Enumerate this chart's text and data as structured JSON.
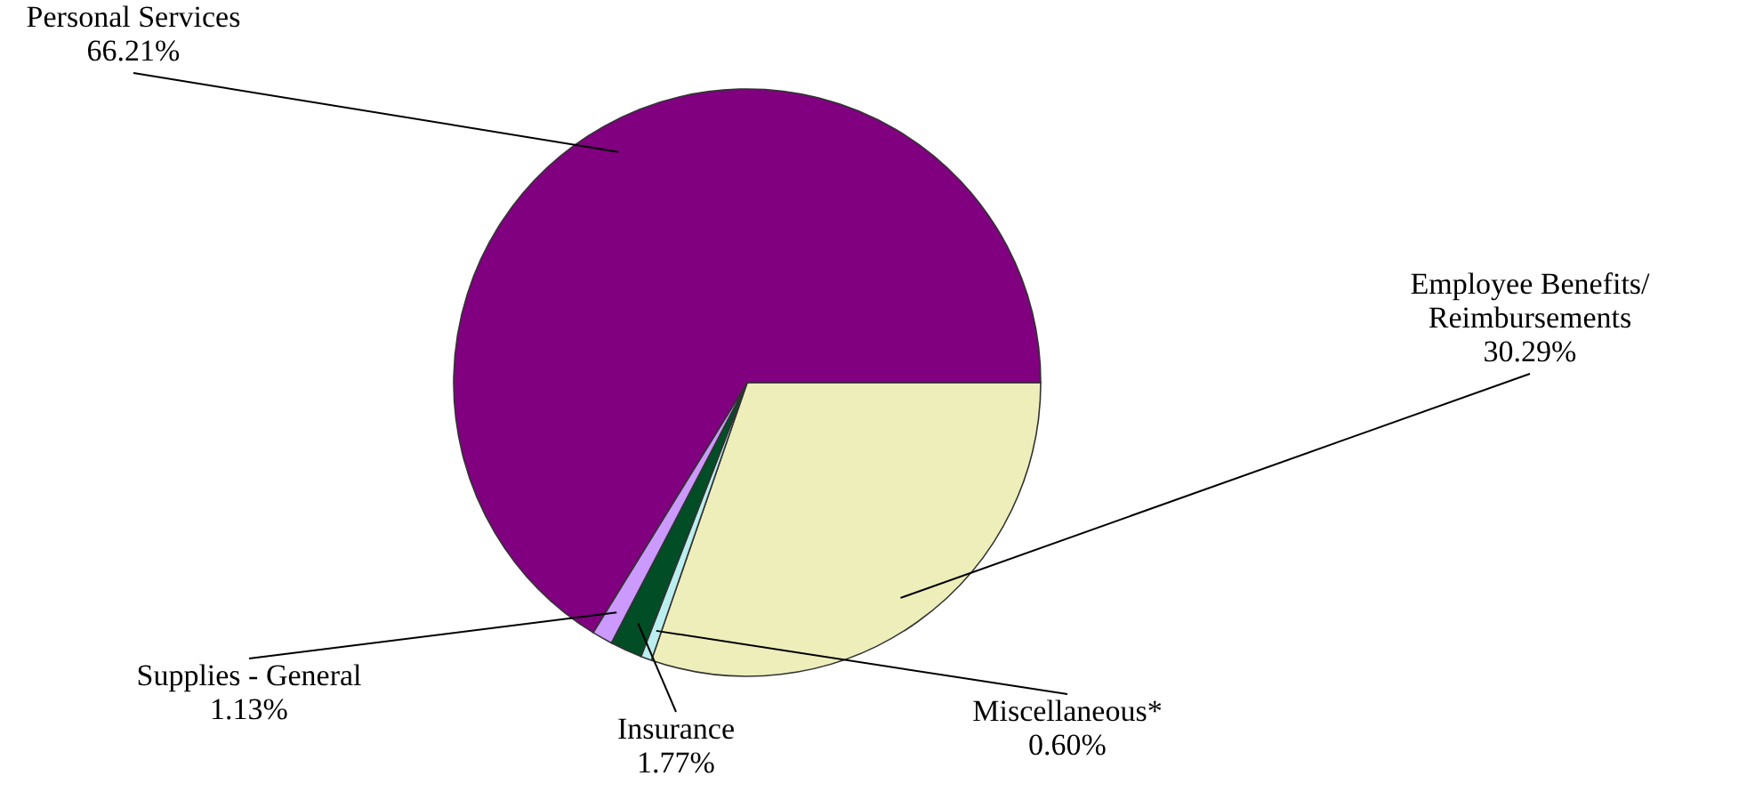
{
  "chart_data": {
    "type": "pie",
    "categories": [
      "Employee Benefits/ Reimbursements",
      "Miscellaneous*",
      "Insurance",
      "Supplies - General",
      "Personal Services"
    ],
    "values": [
      30.29,
      0.6,
      1.77,
      1.13,
      66.21
    ],
    "value_labels": [
      "30.29%",
      "0.60%",
      "1.77%",
      "1.13%",
      "66.21%"
    ],
    "colors": [
      "#eeeebb",
      "#bbeeee",
      "#004d26",
      "#cc99ff",
      "#800080"
    ]
  }
}
